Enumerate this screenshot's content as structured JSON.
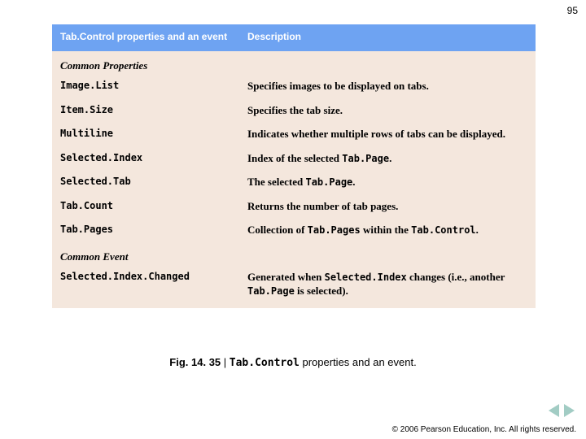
{
  "page_number": "95",
  "table": {
    "header": {
      "left": "Tab.Control properties and an event",
      "right": "Description"
    },
    "sections": [
      {
        "title": "Common Properties",
        "rows": [
          {
            "prop": "Image.List",
            "desc": "Specifies images to be displayed on tabs."
          },
          {
            "prop": "Item.Size",
            "desc": "Specifies the tab size."
          },
          {
            "prop": "Multiline",
            "desc": "Indicates whether multiple rows of tabs can be displayed."
          },
          {
            "prop": "Selected.Index",
            "desc_parts": [
              "Index of the selected ",
              {
                "mono": "Tab.Page"
              },
              "."
            ]
          },
          {
            "prop": "Selected.Tab",
            "desc_parts": [
              "The selected ",
              {
                "mono": "Tab.Page"
              },
              "."
            ]
          },
          {
            "prop": "Tab.Count",
            "desc": "Returns the number of tab pages."
          },
          {
            "prop": "Tab.Pages",
            "desc_parts": [
              "Collection of ",
              {
                "mono": "Tab.Pages"
              },
              " within the ",
              {
                "mono": "Tab.Control"
              },
              "."
            ]
          }
        ]
      },
      {
        "title": "Common Event",
        "rows": [
          {
            "prop": "Selected.Index.Changed",
            "desc_parts": [
              "Generated when ",
              {
                "mono": "Selected.Index"
              },
              " changes (i.e., another ",
              {
                "mono": "Tab.Page"
              },
              " is selected)."
            ]
          }
        ]
      }
    ],
    "colors": {
      "header_bg": "#6ea3f2",
      "header_text": "#ffffff",
      "body_bg": "#f4e7dd",
      "body_text": "#000000"
    }
  },
  "caption": {
    "label": "Fig. 14. 35",
    "sep": " | ",
    "code": "Tab.Control",
    "rest": " properties and an event."
  },
  "nav": {
    "prev_color": "#a2ccc4",
    "next_color": "#a2ccc4"
  },
  "copyright": "© 2006 Pearson Education, Inc.  All rights reserved."
}
